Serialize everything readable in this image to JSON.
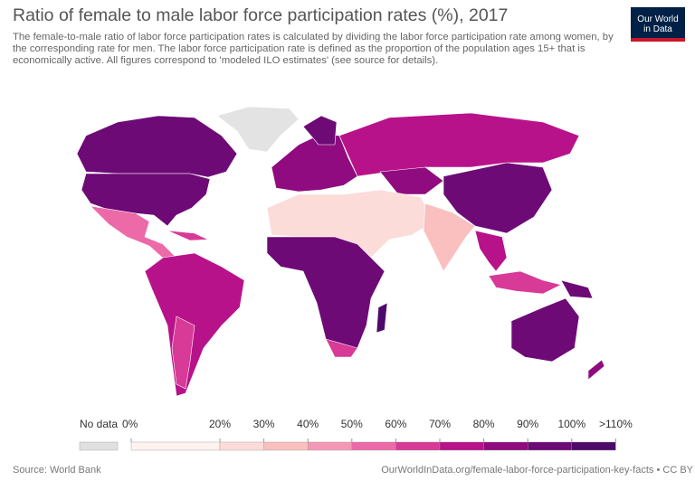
{
  "header": {
    "title": "Ratio of female to male labor force participation rates (%), 2017",
    "subtitle": "The female-to-male ratio of labor force participation rates is calculated by dividing the labor force participation rate among women, by the corresponding rate for men. The labor force participation rate is defined as the proportion of the population ages 15+ that is economically active. All figures correspond to 'modeled ILO estimates' (see source for details).",
    "logo": [
      "Our World",
      "in Data"
    ]
  },
  "legend": {
    "no_data": {
      "label": "No data",
      "color": "#e0e0e0"
    },
    "labels": [
      "0%",
      "20%",
      "30%",
      "40%",
      "50%",
      "60%",
      "70%",
      "80%",
      "90%",
      "100%",
      ">110%"
    ],
    "colors": [
      "#fff2ef",
      "#fcdcd9",
      "#f9c0bf",
      "#f598b6",
      "#ec6aa7",
      "#d83a97",
      "#b8128a",
      "#8f0b7f",
      "#6d0a76",
      "#4d0a69"
    ]
  },
  "footer": {
    "source": "Source: World Bank",
    "url": "OurWorldInData.org/female-labor-force-participation-key-facts • CC BY"
  }
}
